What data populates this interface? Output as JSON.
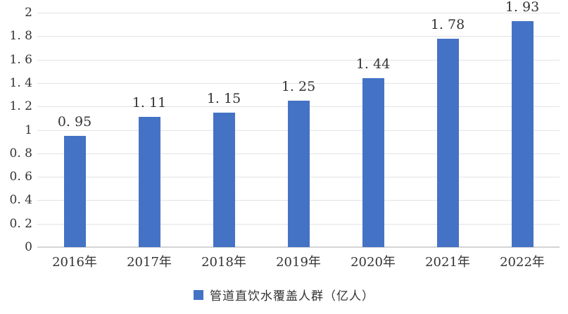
{
  "chart_data": {
    "type": "bar",
    "title": "",
    "legend": "管道直饮水覆盖人群（亿人）",
    "legend_position": "bottom-center",
    "categories": [
      "2016年",
      "2017年",
      "2018年",
      "2019年",
      "2020年",
      "2021年",
      "2022年"
    ],
    "values": [
      0.95,
      1.11,
      1.15,
      1.25,
      1.44,
      1.78,
      1.93
    ],
    "value_labels": [
      "0. 95",
      "1. 11",
      "1. 15",
      "1. 25",
      "1. 44",
      "1. 78",
      "1. 93"
    ],
    "y_ticks": [
      0,
      0.2,
      0.4,
      0.6,
      0.8,
      1,
      1.2,
      1.4,
      1.6,
      1.8,
      2
    ],
    "y_tick_labels": [
      "0",
      "0. 2",
      "0. 4",
      "0. 6",
      "0. 8",
      "1",
      "1. 2",
      "1. 4",
      "1. 6",
      "1. 8",
      "2"
    ],
    "ylim": [
      0,
      2
    ],
    "xlabel": "",
    "ylabel": "",
    "grid": true,
    "colors": {
      "bar": "#4472C4",
      "gridline": "#E3E3E3",
      "axis_line": "#D4D4D4",
      "text": "#333333",
      "background": "#FFFFFF"
    }
  }
}
